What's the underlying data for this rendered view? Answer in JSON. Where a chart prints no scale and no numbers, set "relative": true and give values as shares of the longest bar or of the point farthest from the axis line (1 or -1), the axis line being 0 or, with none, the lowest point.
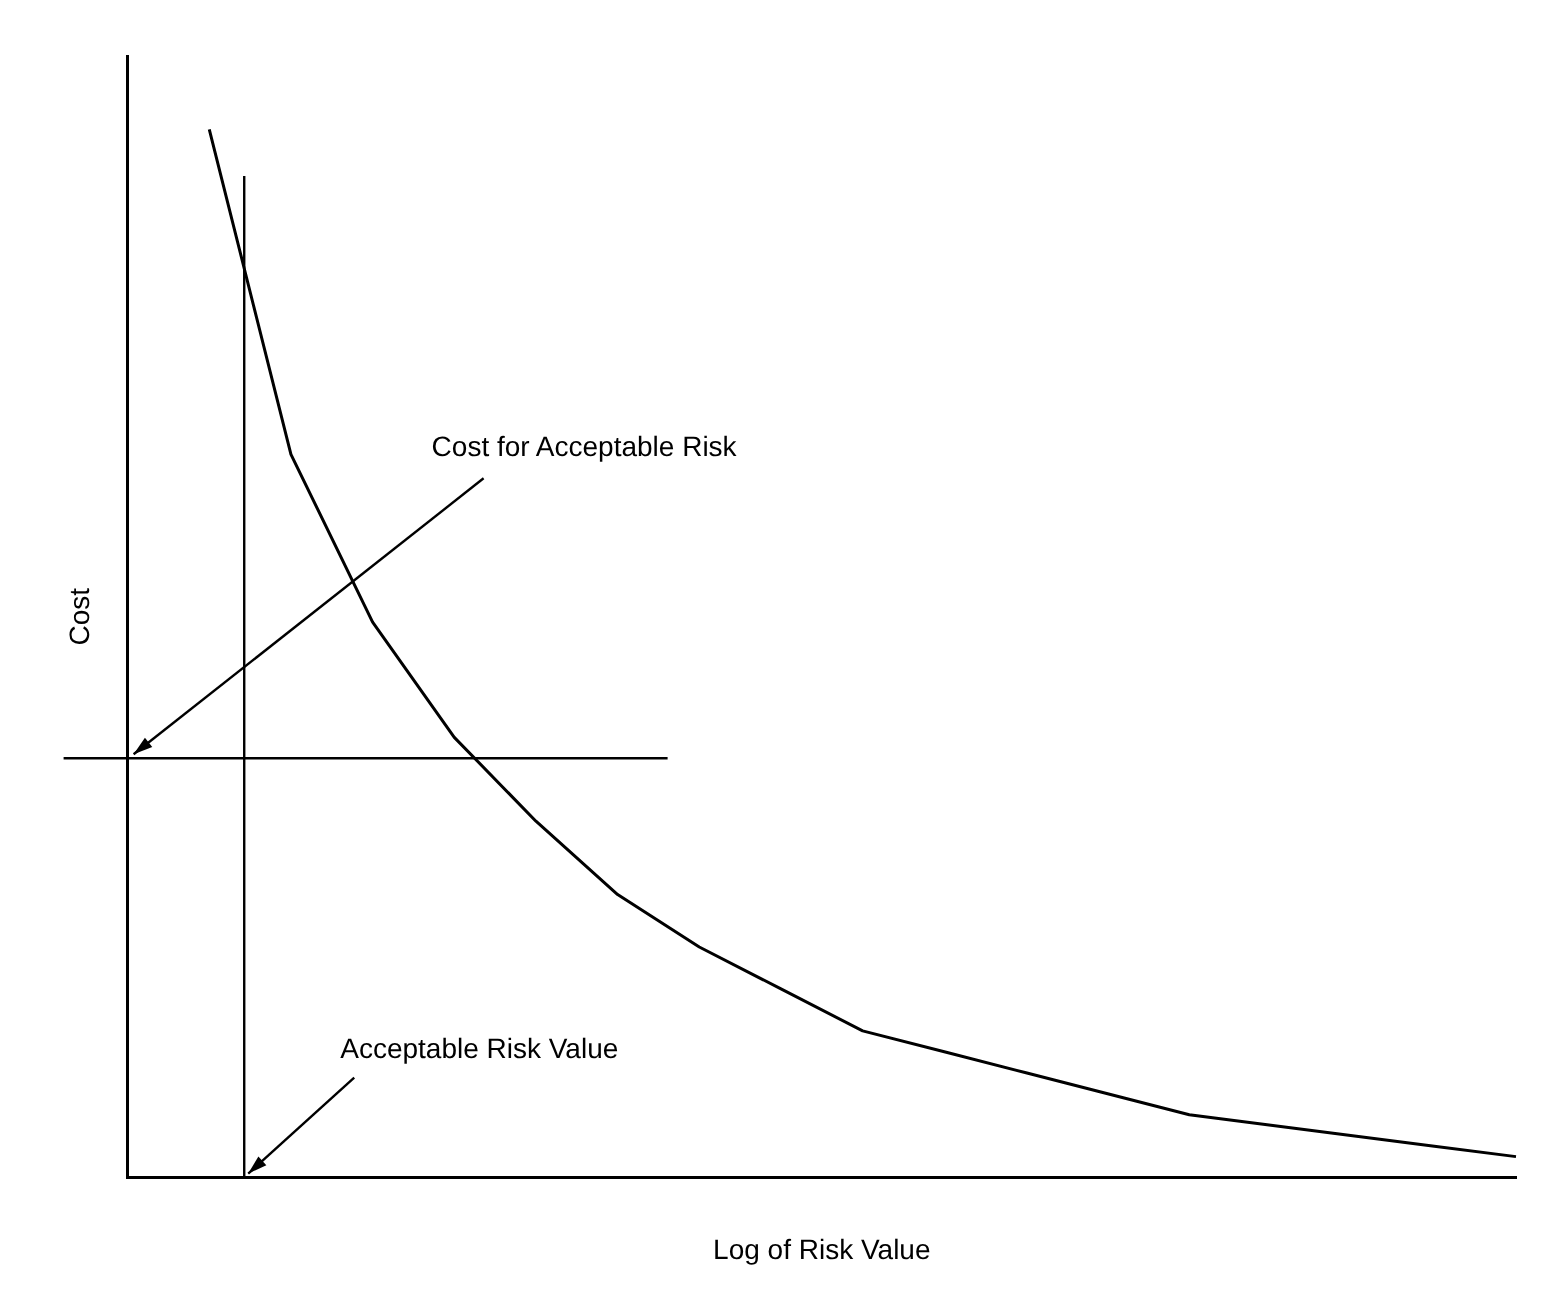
{
  "chart_data": {
    "type": "line",
    "relative": true,
    "xlabel": "Log of Risk Value",
    "ylabel": "Cost",
    "categories": [
      null,
      null,
      null,
      null,
      null,
      null,
      null,
      null,
      null,
      null,
      null,
      null,
      null,
      null,
      null,
      null,
      null,
      null
    ],
    "series": [
      {
        "color": "#000000",
        "values": [
          null,
          1.0,
          0.69,
          0.53,
          0.42,
          0.34,
          0.27,
          0.22,
          0.18,
          0.14,
          0.12,
          0.1,
          0.08,
          0.06,
          0.05,
          0.04,
          0.03,
          0.02
        ]
      }
    ],
    "ref_lines": [
      {
        "axis": "y",
        "value": 0.4,
        "label": "Cost for Acceptable Risk"
      }
    ],
    "annotations": [
      "Acceptable Risk Value"
    ],
    "grid": false,
    "legend": false,
    "marker": "none",
    "line_style": "solid"
  }
}
